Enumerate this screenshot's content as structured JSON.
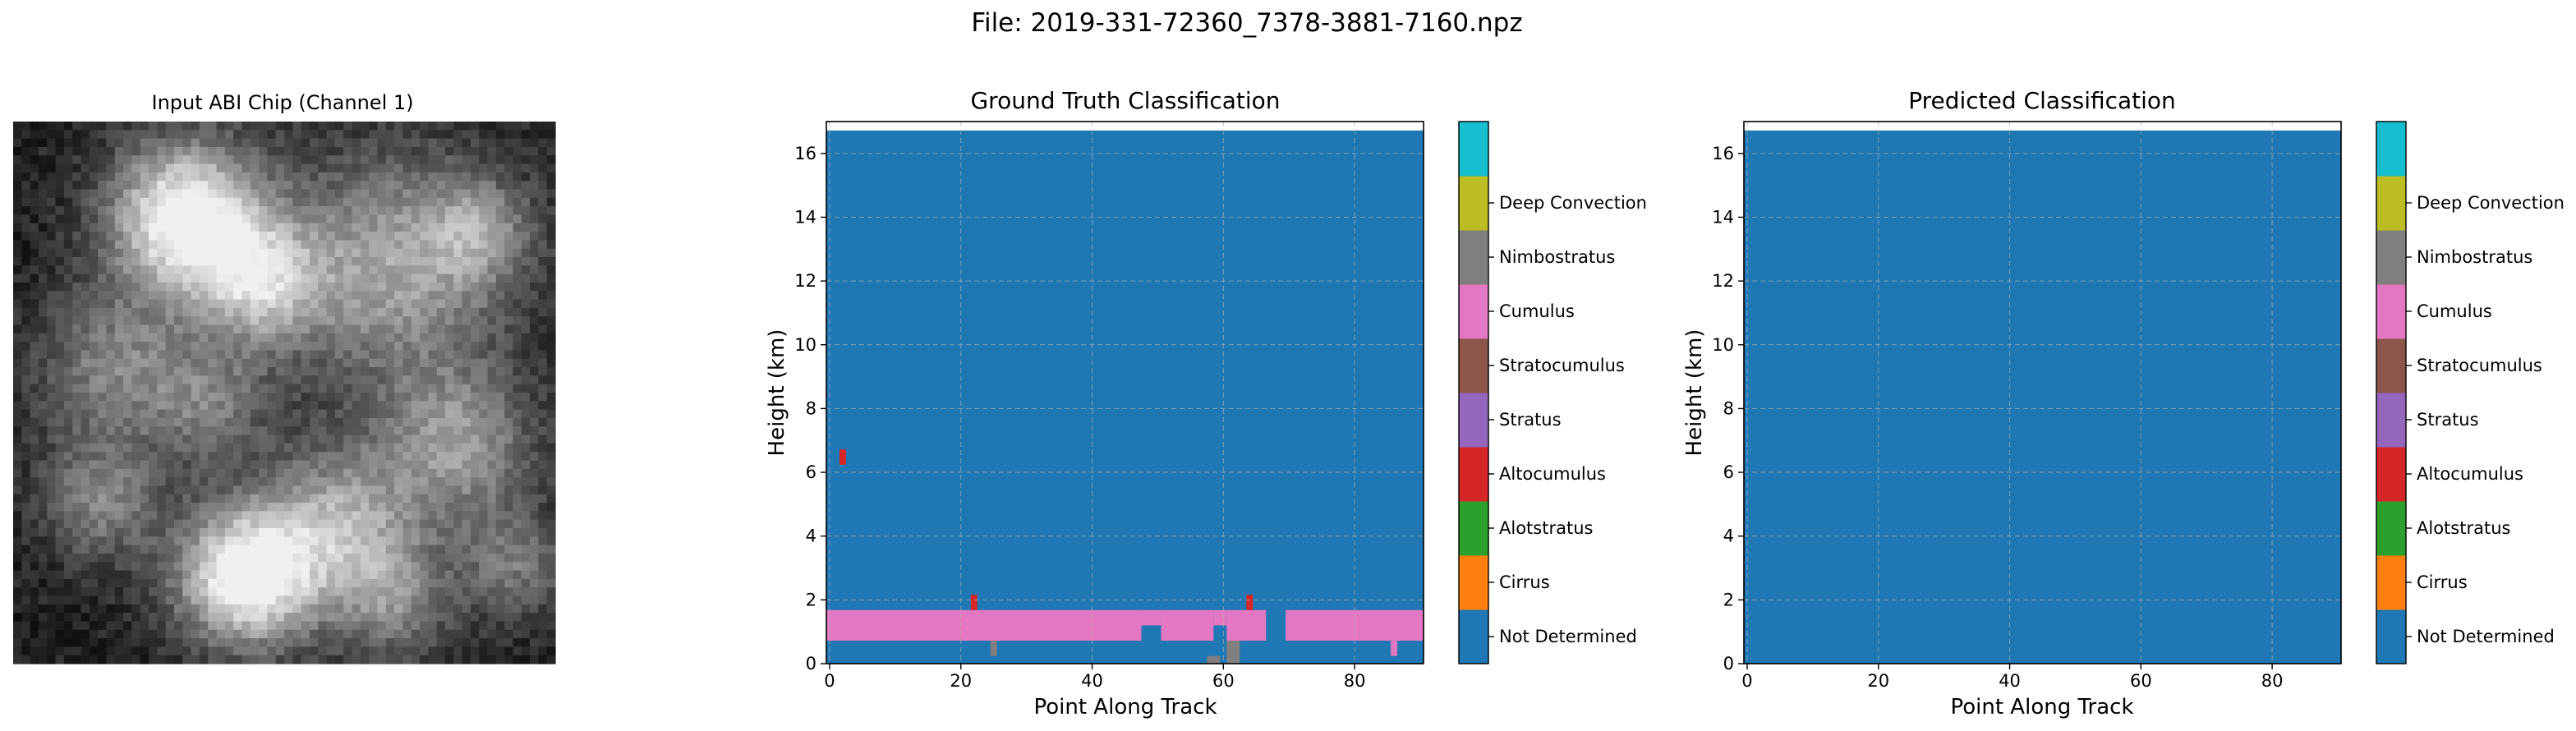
{
  "figure": {
    "suptitle": "File: 2019-331-72360_7378-3881-7160.npz"
  },
  "chart_data": [
    {
      "type": "image",
      "title": "Input ABI Chip (Channel 1)",
      "colormap": "gray",
      "grid_size": [
        64,
        64
      ]
    },
    {
      "type": "heatmap",
      "title": "Ground Truth Classification",
      "xlabel": "Point Along Track",
      "ylabel": "Height (km)",
      "xlim": [
        -0.5,
        90.5
      ],
      "ylim": [
        0,
        17
      ],
      "xticks": [
        0,
        20,
        40,
        60,
        80
      ],
      "yticks": [
        0,
        2,
        4,
        6,
        8,
        10,
        12,
        14,
        16
      ],
      "grid": true,
      "background_class": "Not Determined",
      "data_top_km": 16.72,
      "regions": [
        {
          "class": "Stratocumulus",
          "x": [
            0,
            47
          ],
          "y": [
            0.72,
            1.68
          ]
        },
        {
          "class": "Stratocumulus",
          "x": [
            48,
            50
          ],
          "y": [
            1.2,
            1.68
          ]
        },
        {
          "class": "Stratocumulus",
          "x": [
            51,
            58
          ],
          "y": [
            0.72,
            1.68
          ]
        },
        {
          "class": "Stratocumulus",
          "x": [
            59,
            60
          ],
          "y": [
            1.2,
            1.68
          ]
        },
        {
          "class": "Stratocumulus",
          "x": [
            61,
            66
          ],
          "y": [
            0.72,
            1.68
          ]
        },
        {
          "class": "Stratocumulus",
          "x": [
            70,
            90
          ],
          "y": [
            0.72,
            1.68
          ]
        },
        {
          "class": "Stratocumulus",
          "x": [
            86,
            86
          ],
          "y": [
            0.24,
            0.72
          ]
        },
        {
          "class": "Alotstratus",
          "x": [
            2,
            2
          ],
          "y": [
            6.24,
            6.72
          ]
        },
        {
          "class": "Alotstratus",
          "x": [
            22,
            22
          ],
          "y": [
            1.68,
            2.16
          ]
        },
        {
          "class": "Alotstratus",
          "x": [
            64,
            64
          ],
          "y": [
            1.68,
            2.16
          ]
        },
        {
          "class": "Cumulus",
          "x": [
            25,
            25
          ],
          "y": [
            0.24,
            0.72
          ]
        },
        {
          "class": "Cumulus",
          "x": [
            58,
            59
          ],
          "y": [
            0,
            0.24
          ]
        },
        {
          "class": "Cumulus",
          "x": [
            61,
            62
          ],
          "y": [
            0,
            0.72
          ]
        }
      ]
    },
    {
      "type": "heatmap",
      "title": "Predicted Classification",
      "xlabel": "Point Along Track",
      "ylabel": "Height (km)",
      "xlim": [
        -0.5,
        90.5
      ],
      "ylim": [
        0,
        17
      ],
      "xticks": [
        0,
        20,
        40,
        60,
        80
      ],
      "yticks": [
        0,
        2,
        4,
        6,
        8,
        10,
        12,
        14,
        16
      ],
      "grid": true,
      "background_class": "Not Determined",
      "data_top_km": 16.72,
      "regions": []
    }
  ],
  "colorbar": {
    "classes": [
      {
        "name": "Not Determined",
        "color": "#1f77b4"
      },
      {
        "name": "Cirrus",
        "color": "#ff7f0e"
      },
      {
        "name": "Alotstratus",
        "color": "#d62728"
      },
      {
        "name": "Altocumulus",
        "color": "#9467bd"
      },
      {
        "name": "Stratus",
        "color": "#8c564b"
      },
      {
        "name": "Stratocumulus",
        "color": "#e377c2"
      },
      {
        "name": "Cumulus",
        "color": "#7f7f7f"
      },
      {
        "name": "Nimbostratus",
        "color": "#bcbd22"
      },
      {
        "name": "Deep Convection",
        "color": "#17becf"
      }
    ],
    "segment_colors_bottom_to_top": [
      "#1f77b4",
      "#ff7f0e",
      "#2ca02c",
      "#d62728",
      "#9467bd",
      "#8c564b",
      "#e377c2",
      "#7f7f7f",
      "#bcbd22",
      "#17becf"
    ]
  }
}
